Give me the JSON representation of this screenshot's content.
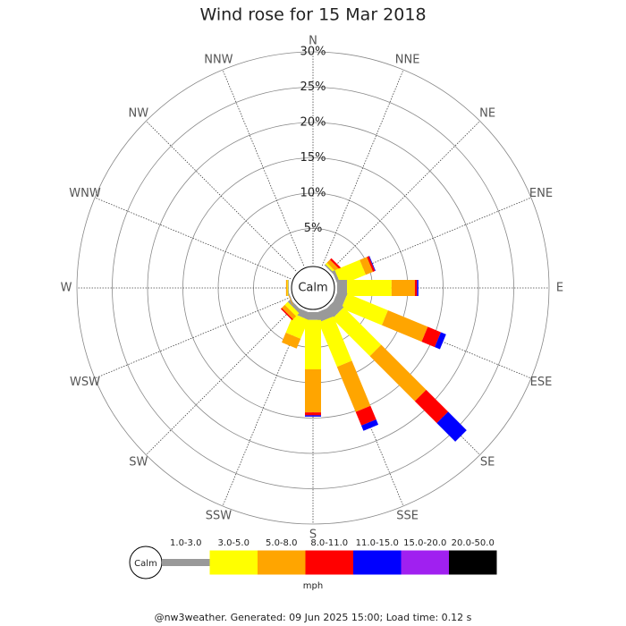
{
  "chart_data": {
    "type": "windrose",
    "title": "Wind rose for 15 Mar 2018",
    "calm_label": "Calm",
    "unit": "mph",
    "categories": [
      "N",
      "NNE",
      "NE",
      "ENE",
      "E",
      "ESE",
      "SE",
      "SSE",
      "S",
      "SSW",
      "SW",
      "WSW",
      "W",
      "WNW",
      "NW",
      "NNW"
    ],
    "series": [
      {
        "name": "1.0-3.0",
        "color": "#999999",
        "values": [
          0,
          0,
          0.2,
          0.4,
          1.4,
          1.4,
          1.6,
          1.4,
          1.1,
          1.0,
          0.5,
          0.1,
          0.1,
          0,
          0,
          0
        ]
      },
      {
        "name": "3.0-5.0",
        "color": "#ffff00",
        "values": [
          0,
          0,
          0.3,
          3.8,
          6.3,
          6.2,
          7.5,
          6.8,
          7.0,
          2.9,
          0.6,
          0,
          0.1,
          0,
          0,
          0
        ]
      },
      {
        "name": "5.0-8.0",
        "color": "#ffa500",
        "values": [
          0,
          0,
          0.6,
          1.1,
          3.3,
          6.1,
          9.0,
          6.9,
          6.1,
          1.5,
          0.6,
          0.1,
          0.2,
          0,
          0,
          0
        ]
      },
      {
        "name": "8.0-11.0",
        "color": "#ff0000",
        "values": [
          0,
          0,
          0.3,
          0.3,
          0.3,
          2.0,
          4.4,
          2.1,
          0.4,
          0,
          0.2,
          0,
          0,
          0,
          0,
          0
        ]
      },
      {
        "name": "11.0-15.0",
        "color": "#0000ff",
        "values": [
          0,
          0,
          0,
          0.1,
          0.2,
          0.8,
          3.7,
          0.8,
          0.2,
          0,
          0,
          0,
          0,
          0,
          0,
          0
        ]
      },
      {
        "name": "15.0-20.0",
        "color": "#a020f0",
        "values": [
          0,
          0,
          0,
          0,
          0,
          0,
          0,
          0,
          0,
          0,
          0,
          0,
          0,
          0,
          0,
          0
        ]
      },
      {
        "name": "20.0-50.0",
        "color": "#000000",
        "values": [
          0,
          0,
          0,
          0,
          0,
          0,
          0,
          0,
          0,
          0,
          0,
          0,
          0,
          0,
          0,
          0
        ]
      }
    ],
    "rlim": [
      0,
      30
    ],
    "rticks": [
      {
        "value": 5,
        "label": "5%"
      },
      {
        "value": 10,
        "label": "10%"
      },
      {
        "value": 15,
        "label": "15%"
      },
      {
        "value": 20,
        "label": "20%"
      },
      {
        "value": 25,
        "label": "25%"
      },
      {
        "value": 30,
        "label": "30%"
      }
    ]
  },
  "footer": "@nw3weather. Generated: 09 Jun 2025 15:00; Load time: 0.12 s"
}
